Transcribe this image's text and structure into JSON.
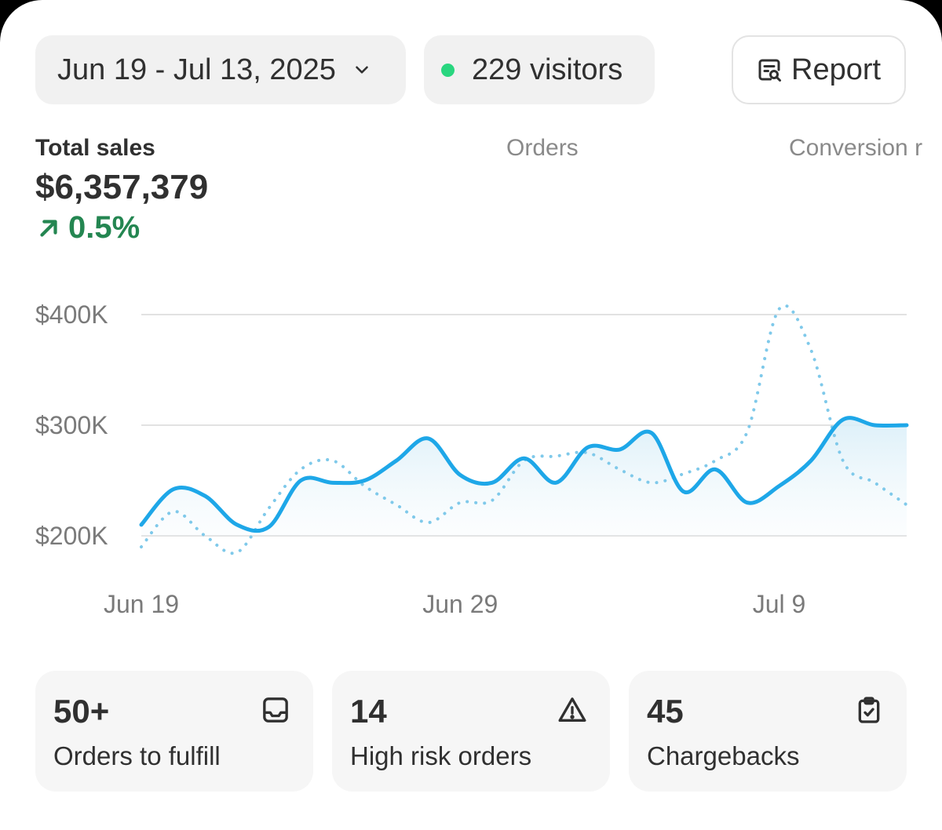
{
  "header": {
    "date_range": "Jun 19 - Jul 13, 2025",
    "visitors": "229 visitors",
    "report_label": "Report"
  },
  "metrics": {
    "total_sales_label": "Total sales",
    "total_sales_value": "$6,357,379",
    "total_sales_delta": "0.5%",
    "orders_label": "Orders",
    "conversion_label": "Conversion r"
  },
  "colors": {
    "accent_line": "#1ea7e8",
    "comparison_line": "#7fc9ea",
    "positive": "#248651",
    "live_dot": "#29d67f"
  },
  "chart_data": {
    "type": "line",
    "title": "",
    "xlabel": "",
    "ylabel": "",
    "x": [
      "Jun 19",
      "Jun 20",
      "Jun 21",
      "Jun 22",
      "Jun 23",
      "Jun 24",
      "Jun 25",
      "Jun 26",
      "Jun 27",
      "Jun 28",
      "Jun 29",
      "Jun 30",
      "Jul 1",
      "Jul 2",
      "Jul 3",
      "Jul 4",
      "Jul 5",
      "Jul 6",
      "Jul 7",
      "Jul 8",
      "Jul 9",
      "Jul 10",
      "Jul 11",
      "Jul 12",
      "Jul 13"
    ],
    "x_tick_labels": [
      "Jun 19",
      "Jun 29",
      "Jul 9"
    ],
    "y_tick_labels": [
      "$200K",
      "$300K",
      "$400K"
    ],
    "ylim": [
      190000,
      430000
    ],
    "grid": true,
    "series": [
      {
        "style": "solid",
        "values": [
          210000,
          242000,
          236000,
          210000,
          208000,
          250000,
          248000,
          250000,
          268000,
          288000,
          255000,
          248000,
          270000,
          248000,
          280000,
          278000,
          293000,
          240000,
          260000,
          230000,
          245000,
          268000,
          305000,
          300000,
          300000
        ]
      },
      {
        "style": "dotted",
        "values": [
          190000,
          222000,
          200000,
          185000,
          225000,
          260000,
          268000,
          245000,
          228000,
          212000,
          230000,
          232000,
          268000,
          272000,
          275000,
          260000,
          248000,
          256000,
          268000,
          294000,
          405000,
          368000,
          268000,
          248000,
          228000
        ]
      }
    ]
  },
  "cards": [
    {
      "value": "50+",
      "label": "Orders to fulfill",
      "icon": "inbox-icon"
    },
    {
      "value": "14",
      "label": "High risk orders",
      "icon": "alert-triangle-icon"
    },
    {
      "value": "45",
      "label": "Chargebacks",
      "icon": "clipboard-check-icon"
    }
  ]
}
